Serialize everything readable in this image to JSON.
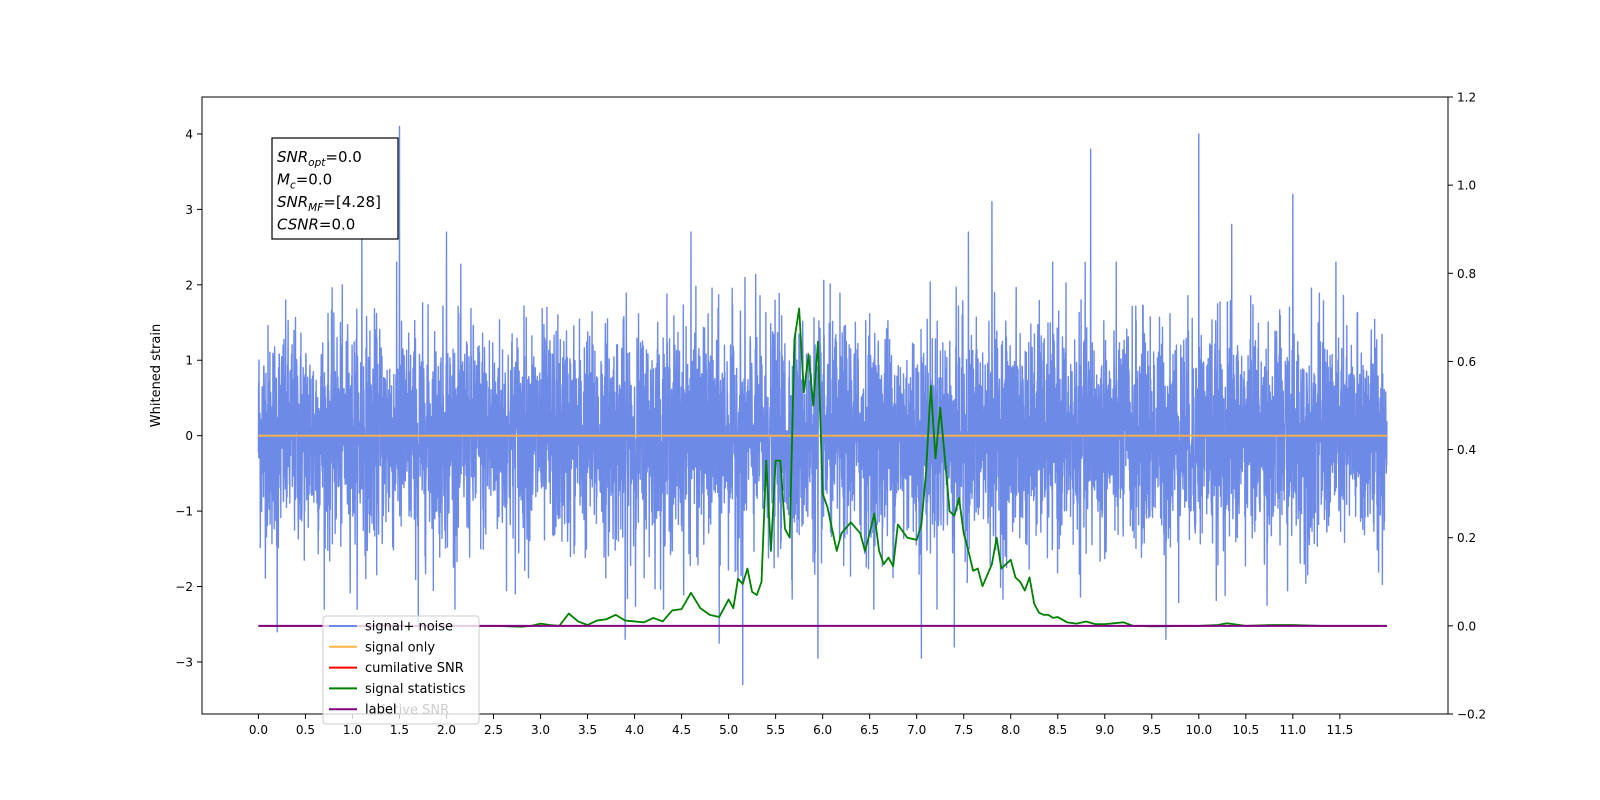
{
  "chart_data": {
    "type": "line",
    "ylabel": "Whitened strain",
    "x_ticks": [
      0.0,
      0.5,
      1.0,
      1.5,
      2.0,
      2.5,
      3.0,
      3.5,
      4.0,
      4.5,
      5.0,
      5.5,
      6.0,
      6.5,
      7.0,
      7.5,
      8.0,
      8.5,
      9.0,
      9.5,
      10.0,
      10.5,
      11.0,
      11.5
    ],
    "x_tick_labels": [
      "0.0",
      "0.5",
      "1.0",
      "1.5",
      "2.0",
      "2.5",
      "3.0",
      "3.5",
      "4.0",
      "4.5",
      "5.0",
      "5.5",
      "6.0",
      "6.5",
      "7.0",
      "7.5",
      "8.0",
      "8.5",
      "9.0",
      "9.5",
      "10.0",
      "10.5",
      "11.0",
      "11.5"
    ],
    "xlim": [
      -0.6,
      12.65
    ],
    "ylim_left": [
      -3.69,
      4.49
    ],
    "y_ticks_left": [
      -3,
      -2,
      -1,
      0,
      1,
      2,
      3,
      4
    ],
    "y_tick_labels_left": [
      "−3",
      "−2",
      "−1",
      "0",
      "1",
      "2",
      "3",
      "4"
    ],
    "ylim_right": [
      -0.2,
      1.2
    ],
    "y_ticks_right": [
      -0.2,
      0.0,
      0.2,
      0.4,
      0.6,
      0.8,
      1.0,
      1.2
    ],
    "y_tick_labels_right": [
      "−0.2",
      "0.0",
      "0.2",
      "0.4",
      "0.6",
      "0.8",
      "1.0",
      "1.2"
    ],
    "grid": false,
    "legend_position": "lower-left",
    "series": [
      {
        "name": "signal+ noise",
        "color": "#6d8ae6",
        "axis": "left",
        "description": "dense whitened strain noise, roughly within ±1.8 with spikes",
        "x_range": [
          0.0,
          12.0
        ],
        "envelope": [
          -1.8,
          2.0
        ],
        "spikes": [
          {
            "x": 1.5,
            "y": 4.1
          },
          {
            "x": 10.0,
            "y": 4.0
          },
          {
            "x": 8.85,
            "y": 3.8
          },
          {
            "x": 11.0,
            "y": 3.2
          },
          {
            "x": 7.8,
            "y": 3.1
          },
          {
            "x": 1.1,
            "y": 2.9
          },
          {
            "x": 4.6,
            "y": 2.7
          },
          {
            "x": 10.35,
            "y": 2.8
          },
          {
            "x": 7.55,
            "y": 2.7
          },
          {
            "x": 2.0,
            "y": 2.7
          },
          {
            "x": 5.15,
            "y": -3.3
          },
          {
            "x": 5.95,
            "y": -2.95
          },
          {
            "x": 7.05,
            "y": -2.95
          },
          {
            "x": 7.4,
            "y": -2.8
          },
          {
            "x": 4.9,
            "y": -2.75
          },
          {
            "x": 9.65,
            "y": -2.7
          },
          {
            "x": 3.9,
            "y": -2.7
          },
          {
            "x": 0.2,
            "y": -2.6
          },
          {
            "x": 1.7,
            "y": -2.55
          }
        ]
      },
      {
        "name": "signal only",
        "color": "#ffb347",
        "axis": "left",
        "x": [
          0.0,
          12.0
        ],
        "values": [
          0.0,
          0.0
        ]
      },
      {
        "name": "cumilative SNR",
        "color": "#ff0000",
        "axis": "right",
        "x": [],
        "values": []
      },
      {
        "name": "signal statistics",
        "color": "#008000",
        "axis": "right",
        "x": [
          0.0,
          2.5,
          2.8,
          2.9,
          3.0,
          3.1,
          3.2,
          3.3,
          3.4,
          3.5,
          3.6,
          3.7,
          3.8,
          3.9,
          4.0,
          4.1,
          4.2,
          4.3,
          4.4,
          4.5,
          4.6,
          4.7,
          4.8,
          4.9,
          5.0,
          5.05,
          5.1,
          5.15,
          5.2,
          5.25,
          5.3,
          5.35,
          5.4,
          5.45,
          5.5,
          5.55,
          5.6,
          5.65,
          5.7,
          5.75,
          5.8,
          5.85,
          5.9,
          5.95,
          6.0,
          6.05,
          6.1,
          6.15,
          6.2,
          6.3,
          6.4,
          6.45,
          6.5,
          6.55,
          6.6,
          6.65,
          6.7,
          6.75,
          6.8,
          6.9,
          7.0,
          7.05,
          7.1,
          7.15,
          7.2,
          7.25,
          7.3,
          7.35,
          7.4,
          7.45,
          7.5,
          7.55,
          7.6,
          7.65,
          7.7,
          7.8,
          7.85,
          7.9,
          8.0,
          8.05,
          8.1,
          8.15,
          8.2,
          8.25,
          8.3,
          8.35,
          8.4,
          8.45,
          8.5,
          8.6,
          8.7,
          8.8,
          8.9,
          9.0,
          9.2,
          9.3,
          9.5,
          10.0,
          10.2,
          10.3,
          10.5,
          10.8,
          11.0,
          11.3,
          12.0
        ],
        "values": [
          0.0,
          0.0,
          -0.002,
          0.0,
          0.005,
          0.002,
          0.0,
          0.028,
          0.01,
          0.002,
          0.012,
          0.015,
          0.025,
          0.012,
          0.01,
          0.008,
          0.018,
          0.01,
          0.035,
          0.038,
          0.075,
          0.04,
          0.025,
          0.02,
          0.06,
          0.04,
          0.107,
          0.095,
          0.13,
          0.077,
          0.07,
          0.1,
          0.375,
          0.17,
          0.375,
          0.375,
          0.22,
          0.2,
          0.65,
          0.72,
          0.53,
          0.615,
          0.5,
          0.645,
          0.3,
          0.27,
          0.22,
          0.17,
          0.21,
          0.235,
          0.21,
          0.17,
          0.21,
          0.255,
          0.17,
          0.14,
          0.155,
          0.135,
          0.23,
          0.2,
          0.195,
          0.23,
          0.35,
          0.545,
          0.38,
          0.495,
          0.38,
          0.26,
          0.25,
          0.29,
          0.21,
          0.17,
          0.125,
          0.13,
          0.09,
          0.14,
          0.2,
          0.13,
          0.15,
          0.11,
          0.1,
          0.08,
          0.11,
          0.05,
          0.03,
          0.025,
          0.025,
          0.018,
          0.02,
          0.008,
          0.005,
          0.01,
          0.004,
          0.004,
          0.008,
          0.0,
          -0.001,
          0.0,
          0.002,
          0.006,
          0.0,
          0.002,
          0.002,
          0.0,
          0.0
        ]
      },
      {
        "name": "label",
        "color": "#800080",
        "axis": "right",
        "x": [
          0.0,
          12.0
        ],
        "values": [
          0.0,
          0.0
        ]
      }
    ],
    "annotation": {
      "lines": [
        {
          "sym": "SNR",
          "sub": "opt",
          "rest": "=0.0"
        },
        {
          "sym": "M",
          "sub": "c",
          "rest": "=0.0"
        },
        {
          "sym": "SNR",
          "sub": "MF",
          "rest": "=[4.28]"
        },
        {
          "sym": "CSNR",
          "sub": "",
          "rest": "=0.0"
        }
      ]
    },
    "legend_overlap_text": "lative SNR"
  }
}
